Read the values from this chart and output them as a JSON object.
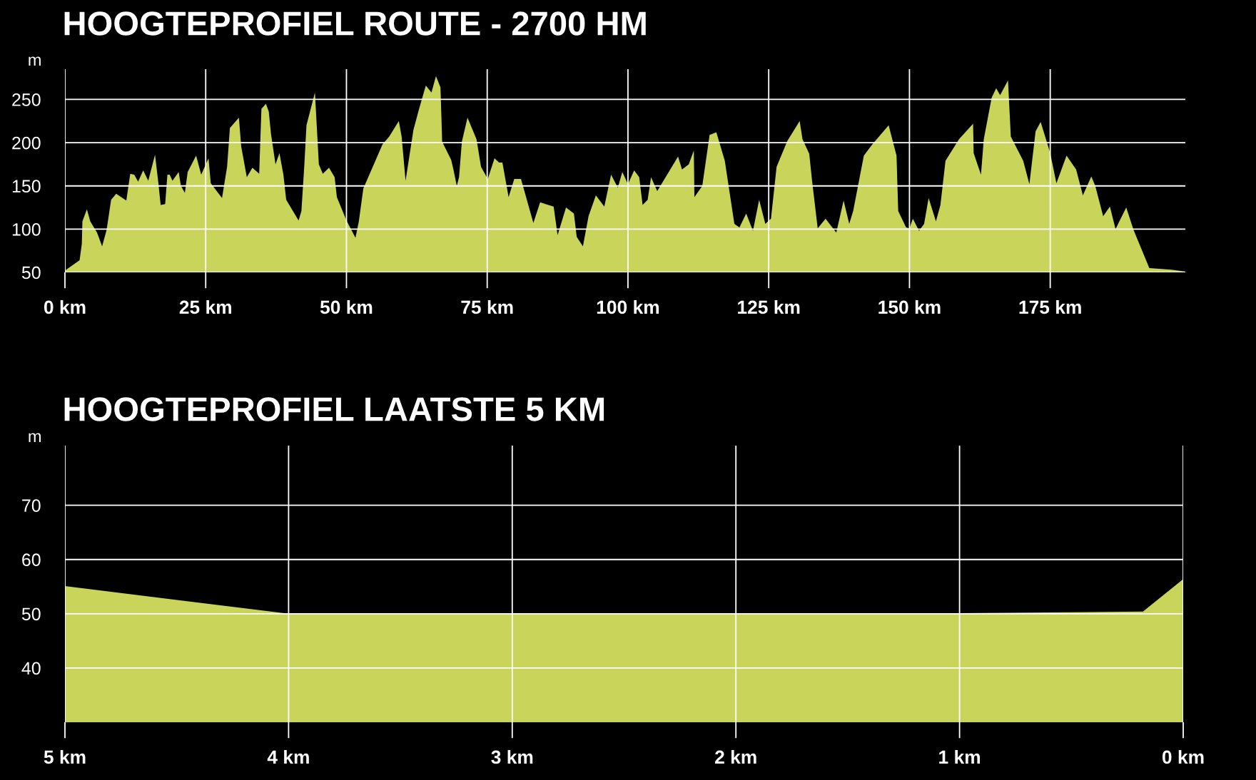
{
  "chart_data": [
    {
      "type": "area",
      "title": "HOOGTEPROFIEL ROUTE - 2700 HM",
      "ylabel": "m",
      "color": "#c9d55a",
      "grid": true,
      "x": [
        0,
        2.6,
        3.0,
        3.1,
        3.9,
        4.5,
        5.7,
        6.6,
        7.4,
        8.2,
        9.1,
        10.9,
        11.6,
        12.3,
        13.0,
        13.9,
        14.8,
        16.0,
        16.6,
        17.0,
        17.8,
        18.2,
        18.6,
        19.1,
        20.2,
        20.6,
        21.3,
        21.8,
        23.3,
        24.2,
        25.5,
        25.9,
        27.9,
        28.8,
        29.3,
        30.9,
        31.3,
        32.3,
        33.3,
        34.5,
        34.9,
        35.7,
        36.2,
        36.6,
        37.4,
        38.1,
        38.8,
        39.3,
        41.5,
        42.0,
        42.5,
        42.9,
        44.4,
        45.1,
        45.8,
        46.9,
        47.9,
        48.3,
        50.0,
        51.6,
        52.2,
        53.0,
        56.4,
        57.6,
        59.3,
        59.8,
        60.5,
        61.9,
        62.9,
        64.1,
        65.1,
        65.9,
        66.7,
        67.0,
        68.6,
        69.0,
        69.6,
        70.0,
        70.5,
        71.5,
        73.1,
        73.9,
        75.1,
        76.3,
        77.1,
        77.7,
        78.8,
        79.8,
        81.0,
        83.2,
        84.4,
        86.8,
        87.5,
        89.0,
        90.4,
        90.9,
        92.0,
        93.0,
        94.3,
        95.8,
        97.0,
        98.2,
        99.0,
        100.0,
        101.1,
        102.0,
        102.6,
        103.5,
        104.1,
        105.2,
        108.9,
        109.6,
        110.8,
        111.7,
        111.8,
        113.2,
        114.5,
        115.7,
        117.2,
        118.9,
        119.8,
        121.0,
        122.2,
        123.3,
        124.4,
        125.4,
        126.4,
        128.3,
        130.5,
        131.0,
        132.2,
        132.7,
        133.7,
        135.1,
        137.0,
        138.3,
        139.3,
        140.0,
        141.9,
        143.4,
        146.3,
        147.7,
        148.0,
        149.4,
        150.0,
        150.6,
        151.7,
        152.6,
        153.4,
        154.7,
        155.5,
        156.4,
        158.8,
        161.3,
        161.4,
        162.7,
        163.2,
        164.6,
        165.4,
        166.1,
        167.5,
        168.0,
        170.2,
        171.3,
        172.4,
        173.3,
        175.0,
        176.1,
        177.9,
        179.6,
        180.8,
        182.3,
        183.0,
        184.4,
        185.6,
        186.6,
        188.5,
        189.8,
        192.6,
        196.5,
        198.9
      ],
      "values": [
        52,
        64,
        83,
        109,
        123,
        109,
        96,
        80,
        99,
        134,
        141,
        133,
        164,
        163,
        155,
        168,
        156,
        186,
        153,
        128,
        129,
        163,
        163,
        156,
        166,
        150,
        142,
        166,
        185,
        163,
        182,
        153,
        136,
        172,
        217,
        229,
        196,
        160,
        171,
        164,
        239,
        245,
        236,
        210,
        175,
        188,
        163,
        134,
        110,
        121,
        172,
        220,
        258,
        175,
        164,
        171,
        160,
        137,
        110,
        90,
        109,
        147,
        198,
        207,
        225,
        207,
        156,
        215,
        239,
        266,
        258,
        277,
        264,
        201,
        180,
        169,
        150,
        160,
        201,
        229,
        204,
        172,
        158,
        182,
        177,
        177,
        137,
        158,
        158,
        107,
        131,
        126,
        93,
        125,
        118,
        91,
        80,
        115,
        139,
        126,
        163,
        148,
        166,
        152,
        168,
        160,
        128,
        134,
        160,
        144,
        184,
        169,
        175,
        191,
        137,
        150,
        209,
        212,
        179,
        106,
        102,
        118,
        98,
        134,
        106,
        112,
        172,
        202,
        225,
        204,
        187,
        156,
        101,
        112,
        96,
        133,
        106,
        121,
        185,
        198,
        220,
        185,
        121,
        102,
        101,
        112,
        98,
        106,
        136,
        109,
        128,
        179,
        204,
        222,
        188,
        163,
        204,
        252,
        263,
        255,
        272,
        207,
        179,
        152,
        213,
        224,
        188,
        153,
        185,
        169,
        139,
        161,
        150,
        115,
        126,
        100,
        125,
        99,
        55,
        53,
        51
      ],
      "xlim": [
        0,
        199
      ],
      "ylim": [
        50,
        285
      ],
      "xticks": [
        {
          "value": 0,
          "label": "0 km"
        },
        {
          "value": 25,
          "label": "25 km"
        },
        {
          "value": 50,
          "label": "50 km"
        },
        {
          "value": 75,
          "label": "75 km"
        },
        {
          "value": 100,
          "label": "100 km"
        },
        {
          "value": 125,
          "label": "125 km"
        },
        {
          "value": 150,
          "label": "150 km"
        },
        {
          "value": 175,
          "label": "175 km"
        }
      ],
      "yticks": [
        50,
        100,
        150,
        200,
        250
      ]
    },
    {
      "type": "area",
      "title": "HOOGTEPROFIEL LAATSTE 5 KM",
      "ylabel": "m",
      "color": "#c9d55a",
      "grid": true,
      "x": [
        5,
        4,
        2,
        1,
        0.18,
        0
      ],
      "values": [
        55.1,
        50,
        50,
        50.1,
        50.4,
        56.4
      ],
      "xlim": [
        5,
        0
      ],
      "ylim": [
        30,
        81
      ],
      "xticks": [
        {
          "value": 5,
          "label": "5 km"
        },
        {
          "value": 4,
          "label": "4 km"
        },
        {
          "value": 3,
          "label": "3 km"
        },
        {
          "value": 2,
          "label": "2 km"
        },
        {
          "value": 1,
          "label": "1 km"
        },
        {
          "value": 0,
          "label": "0 km"
        }
      ],
      "yticks": [
        40,
        50,
        60,
        70
      ]
    }
  ]
}
